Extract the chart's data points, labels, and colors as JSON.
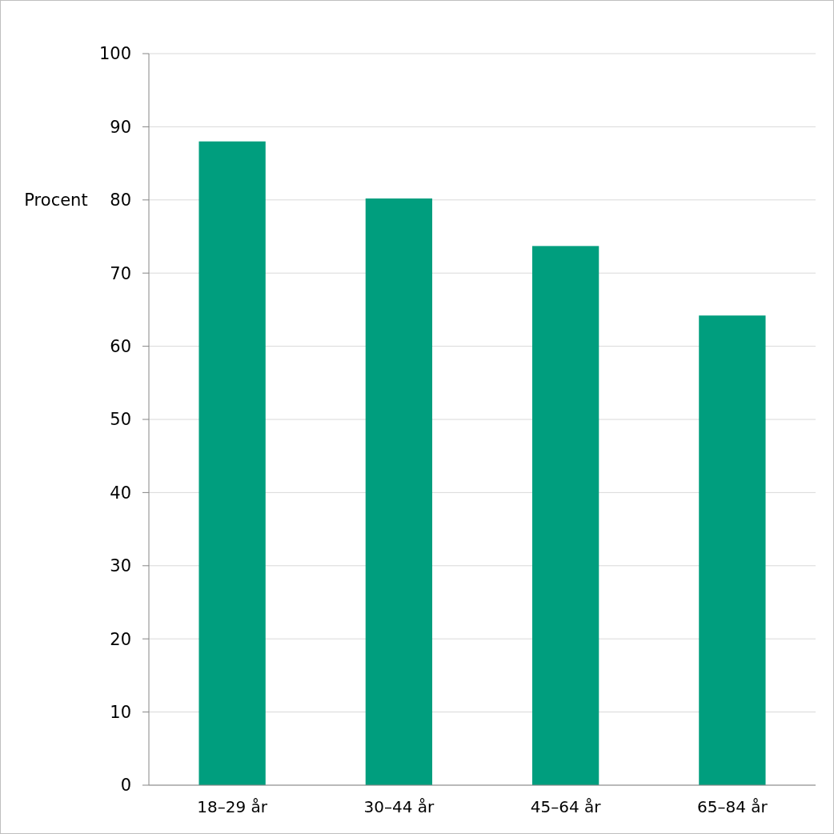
{
  "chart_data": {
    "type": "bar",
    "ylabel": "Procent",
    "categories": [
      "18–29 år",
      "30–44 år",
      "45–64 år",
      "65–84 år"
    ],
    "values": [
      88,
      80.2,
      73.7,
      64.2
    ],
    "color": "#009e7e",
    "ylim": [
      0,
      100
    ],
    "yticks": [
      0,
      10,
      20,
      30,
      40,
      50,
      60,
      70,
      80,
      90,
      100
    ],
    "grid": "y"
  }
}
